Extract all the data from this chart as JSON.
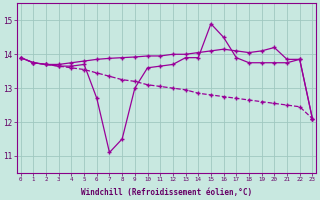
{
  "xlabel": "Windchill (Refroidissement éolien,°C)",
  "bg_color": "#c8e8e0",
  "grid_color": "#a0c8c0",
  "line_color": "#990099",
  "ylim": [
    10.5,
    15.5
  ],
  "xlim": [
    -0.3,
    23.3
  ],
  "yticks": [
    11,
    12,
    13,
    14,
    15
  ],
  "x_ticks": [
    0,
    1,
    2,
    3,
    4,
    5,
    6,
    7,
    8,
    9,
    10,
    11,
    12,
    13,
    14,
    15,
    16,
    17,
    18,
    19,
    20,
    21,
    22,
    23
  ],
  "line1_x": [
    0,
    1,
    2,
    3,
    4,
    5,
    6,
    7,
    8,
    9,
    10,
    11,
    12,
    13,
    14,
    15,
    16,
    17,
    18,
    19,
    20,
    21,
    22,
    23
  ],
  "line1_y": [
    13.9,
    13.75,
    13.7,
    13.7,
    13.75,
    13.8,
    13.85,
    13.88,
    13.9,
    13.92,
    13.95,
    13.95,
    14.0,
    14.0,
    14.05,
    14.1,
    14.15,
    14.1,
    14.05,
    14.1,
    14.2,
    13.85,
    13.85,
    12.1
  ],
  "line2_x": [
    0,
    1,
    2,
    3,
    4,
    5,
    6,
    7,
    8,
    9,
    10,
    11,
    12,
    13,
    14,
    15,
    16,
    17,
    18,
    19,
    20,
    21,
    22,
    23
  ],
  "line2_y": [
    13.9,
    13.75,
    13.7,
    13.65,
    13.65,
    13.7,
    12.7,
    11.1,
    11.5,
    13.0,
    13.6,
    13.65,
    13.7,
    13.9,
    13.9,
    14.9,
    14.5,
    13.9,
    13.75,
    13.75,
    13.75,
    13.75,
    13.85,
    12.1
  ],
  "line3_x": [
    0,
    1,
    2,
    3,
    4,
    5,
    6,
    7,
    8,
    9,
    10,
    11,
    12,
    13,
    14,
    15,
    16,
    17,
    18,
    19,
    20,
    21,
    22,
    23
  ],
  "line3_y": [
    13.9,
    13.75,
    13.7,
    13.65,
    13.6,
    13.55,
    13.45,
    13.35,
    13.25,
    13.2,
    13.1,
    13.05,
    13.0,
    12.95,
    12.85,
    12.8,
    12.75,
    12.7,
    12.65,
    12.6,
    12.55,
    12.5,
    12.45,
    12.1
  ]
}
